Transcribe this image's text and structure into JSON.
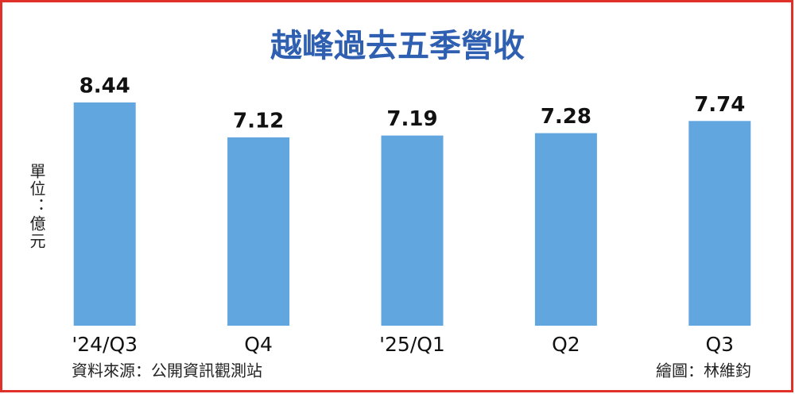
{
  "chart_data": {
    "type": "bar",
    "title": "越峰過去五季營收",
    "y_label": "單位：億元",
    "categories": [
      "'24/Q3",
      "Q4",
      "'25/Q1",
      "Q2",
      "Q3"
    ],
    "values": [
      8.44,
      7.12,
      7.19,
      7.28,
      7.74
    ],
    "color": "#62a6e0",
    "source": "資料來源：公開資訊觀測站",
    "credit": "繪圖：林維鈞"
  }
}
